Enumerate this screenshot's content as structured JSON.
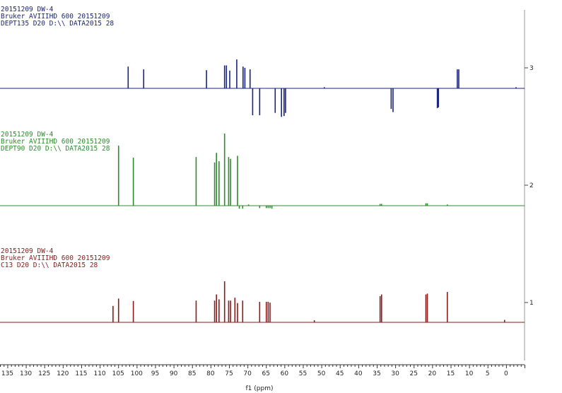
{
  "chart_data": {
    "type": "line",
    "xlabel": "f1 (ppm)",
    "xlim": [
      137,
      -5
    ],
    "x_ticks": [
      135,
      130,
      125,
      120,
      115,
      110,
      105,
      100,
      95,
      90,
      85,
      80,
      75,
      70,
      65,
      60,
      55,
      50,
      45,
      40,
      35,
      30,
      25,
      20,
      15,
      10,
      5,
      0
    ],
    "series": [
      {
        "index_label": "3",
        "color": "#1a237e",
        "header": [
          "20151209 DW-4",
          "Bruker AVIIIHD 600 20151209",
          "DEPT135 D20 D:\\\\ DATA2015 28"
        ],
        "peaks": [
          [
            102.4,
            0.55
          ],
          [
            98.2,
            0.48
          ],
          [
            81.2,
            0.46
          ],
          [
            76.3,
            0.58
          ],
          [
            75.8,
            0.58
          ],
          [
            74.9,
            0.45
          ],
          [
            73.0,
            0.73
          ],
          [
            71.3,
            0.55
          ],
          [
            70.8,
            0.52
          ],
          [
            69.4,
            0.48
          ],
          [
            68.7,
            -0.68
          ],
          [
            66.8,
            -0.68
          ],
          [
            62.6,
            -0.62
          ],
          [
            60.9,
            -0.72
          ],
          [
            60.2,
            -0.7
          ],
          [
            59.8,
            -0.62
          ],
          [
            49.3,
            0.03
          ],
          [
            31.2,
            -0.52
          ],
          [
            30.7,
            -0.6
          ],
          [
            18.7,
            -0.5
          ],
          [
            18.4,
            -0.48
          ],
          [
            13.3,
            0.48
          ],
          [
            12.9,
            0.48
          ],
          [
            -2.6,
            0.03
          ]
        ]
      },
      {
        "index_label": "2",
        "color": "#2e8b2e",
        "header": [
          "20151209 DW-4",
          "Bruker AVIIIHD 600 20151209",
          "DEPT90 D20 D:\\\\ DATA2015 28"
        ],
        "peaks": [
          [
            105.0,
            1.0
          ],
          [
            101.0,
            0.8
          ],
          [
            84.0,
            0.81
          ],
          [
            79.0,
            0.72
          ],
          [
            78.5,
            0.88
          ],
          [
            77.8,
            0.74
          ],
          [
            76.3,
            1.2
          ],
          [
            75.2,
            0.81
          ],
          [
            74.7,
            0.78
          ],
          [
            72.8,
            0.83
          ],
          [
            72.3,
            -0.05
          ],
          [
            71.4,
            -0.05
          ],
          [
            69.8,
            0.02
          ],
          [
            66.8,
            -0.04
          ],
          [
            65.0,
            -0.04
          ],
          [
            64.5,
            -0.04
          ],
          [
            64.0,
            -0.04
          ],
          [
            63.5,
            -0.05
          ],
          [
            34.2,
            0.03
          ],
          [
            33.8,
            0.03
          ],
          [
            21.8,
            0.04
          ],
          [
            21.4,
            0.04
          ],
          [
            16.0,
            0.02
          ]
        ]
      },
      {
        "index_label": "1",
        "color": "#8b1a1a",
        "header": [
          "20151209 DW-4",
          "Bruker AVIIIHD 600 20151209",
          "C13 D20 D:\\\\ DATA2015 28"
        ],
        "peaks": [
          [
            106.5,
            0.4
          ],
          [
            105.0,
            0.58
          ],
          [
            101.0,
            0.52
          ],
          [
            84.0,
            0.53
          ],
          [
            79.0,
            0.53
          ],
          [
            78.5,
            0.68
          ],
          [
            77.8,
            0.56
          ],
          [
            76.3,
            1.0
          ],
          [
            75.2,
            0.53
          ],
          [
            74.7,
            0.53
          ],
          [
            73.5,
            0.6
          ],
          [
            72.8,
            0.47
          ],
          [
            71.4,
            0.53
          ],
          [
            66.8,
            0.5
          ],
          [
            65.0,
            0.5
          ],
          [
            64.5,
            0.5
          ],
          [
            64.0,
            0.48
          ],
          [
            52.0,
            0.05
          ],
          [
            34.2,
            0.64
          ],
          [
            33.8,
            0.68
          ],
          [
            21.8,
            0.68
          ],
          [
            21.4,
            0.7
          ],
          [
            16.0,
            0.74
          ],
          [
            0.5,
            0.06
          ]
        ]
      }
    ]
  }
}
